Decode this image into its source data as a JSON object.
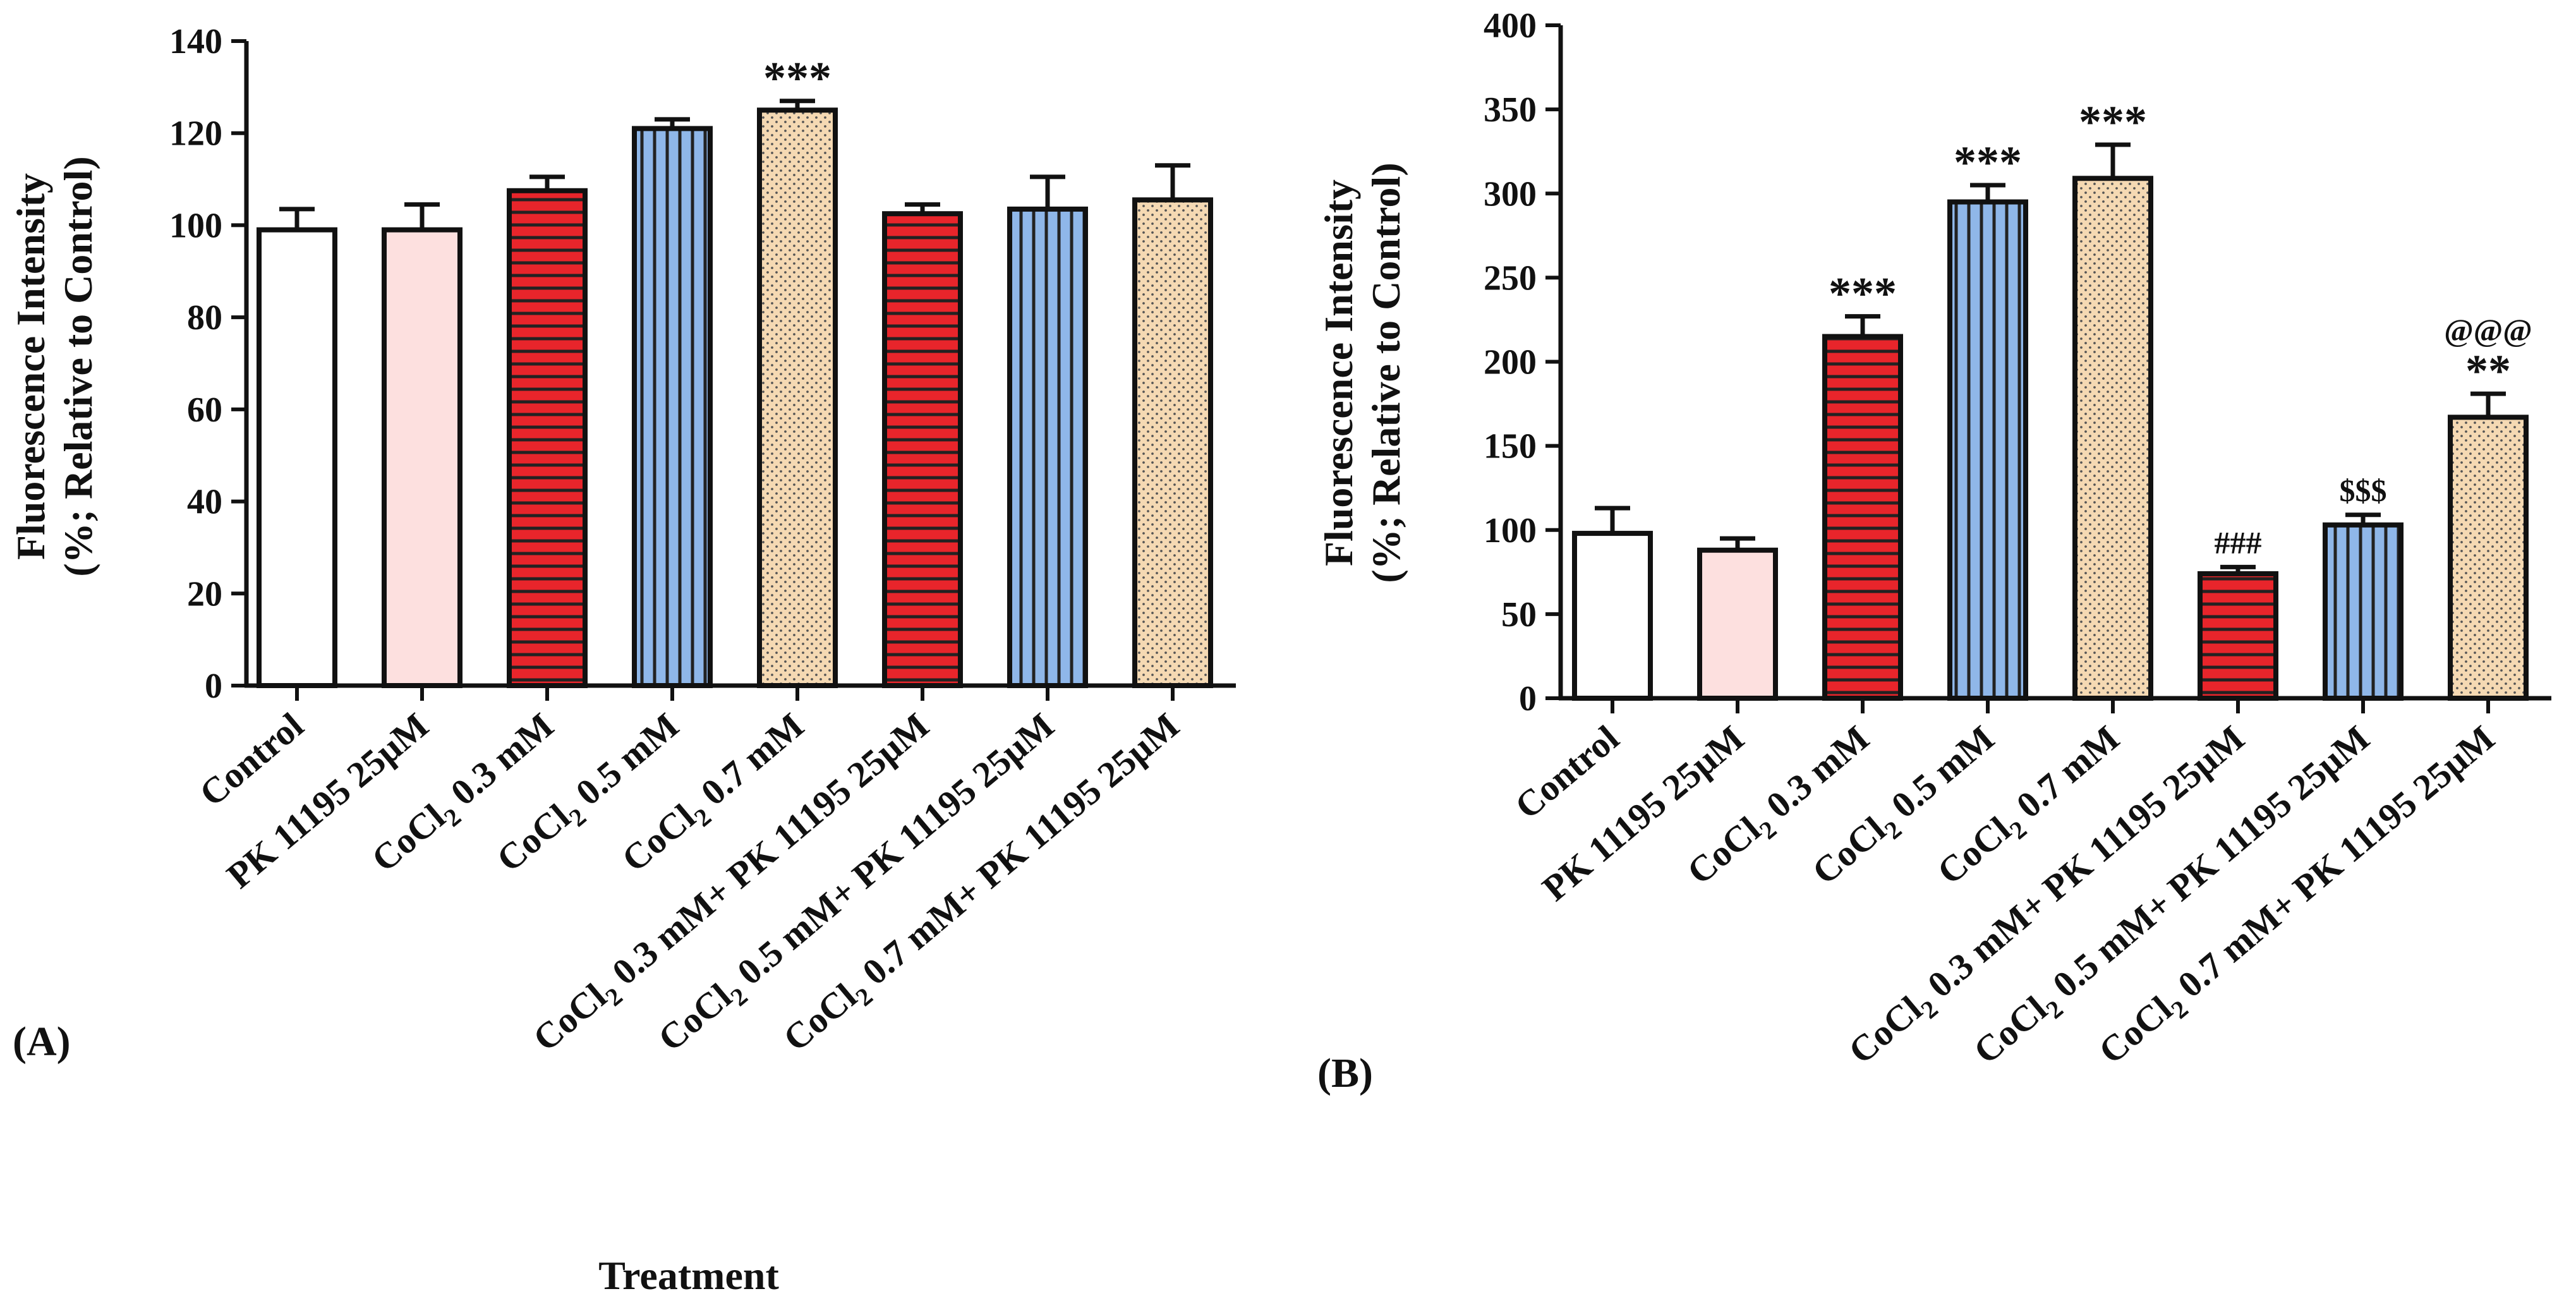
{
  "colors": {
    "control": "#ffffff",
    "pk": "#fde0df",
    "red": "#e8252b",
    "blue": "#8fb7e9",
    "tan": "#f5d9b3",
    "stroke": "#111111"
  },
  "chart_data": [
    {
      "type": "bar",
      "panel": "(A)",
      "ylabel_line1": "Fluorescence Intensity",
      "ylabel_line2": "(%; Relative to Control)",
      "xlabel": "Treatment",
      "ylim": [
        0,
        140
      ],
      "ytick_step": 20,
      "yticks": [
        "0",
        "20",
        "40",
        "60",
        "80",
        "100",
        "120",
        "140"
      ],
      "categories": [
        {
          "main": "Control"
        },
        {
          "main": "PK 11195 25µM"
        },
        {
          "main": "CoCl",
          "sub": "2",
          "rest": " 0.3 mM"
        },
        {
          "main": "CoCl",
          "sub": "2",
          "rest": " 0.5 mM"
        },
        {
          "main": "CoCl",
          "sub": "2",
          "rest": " 0.7 mM"
        },
        {
          "main": "CoCl",
          "sub": "2",
          "rest": " 0.3 mM+ PK 11195 25µM"
        },
        {
          "main": "CoCl",
          "sub": "2",
          "rest": " 0.5 mM+ PK 11195 25µM"
        },
        {
          "main": "CoCl",
          "sub": "2",
          "rest": " 0.7 mM+ PK 11195 25µM"
        }
      ],
      "values": [
        99,
        99,
        107.5,
        121,
        125,
        102.5,
        103.5,
        105.5
      ],
      "errors": [
        4.5,
        5.5,
        3,
        2,
        2,
        2,
        7,
        7.5
      ],
      "patterns": [
        "control",
        "pk",
        "red",
        "blue",
        "tan",
        "red",
        "blue",
        "tan"
      ],
      "annotations": [
        "",
        "",
        "",
        "",
        "***",
        "",
        "",
        ""
      ]
    },
    {
      "type": "bar",
      "panel": "(B)",
      "ylabel_line1": "Fluorescence Intensity",
      "ylabel_line2": "(%; Relative to Control)",
      "ylim": [
        0,
        400
      ],
      "ytick_step": 50,
      "yticks": [
        "0",
        "50",
        "100",
        "150",
        "200",
        "250",
        "300",
        "350",
        "400"
      ],
      "categories": [
        {
          "main": "Control"
        },
        {
          "main": "PK 11195 25µM"
        },
        {
          "main": "CoCl",
          "sub": "2",
          "rest": " 0.3 mM"
        },
        {
          "main": "CoCl",
          "sub": "2",
          "rest": " 0.5 mM"
        },
        {
          "main": "CoCl",
          "sub": "2",
          "rest": " 0.7 mM"
        },
        {
          "main": "CoCl",
          "sub": "2",
          "rest": " 0.3 mM+ PK 11195 25µM"
        },
        {
          "main": "CoCl",
          "sub": "2",
          "rest": " 0.5 mM+ PK 11195 25µM"
        },
        {
          "main": "CoCl",
          "sub": "2",
          "rest": " 0.7 mM+ PK 11195 25µM"
        }
      ],
      "values": [
        98,
        88,
        215,
        295,
        309,
        74,
        103,
        167
      ],
      "errors": [
        15,
        7,
        12,
        10,
        20,
        4,
        6,
        14
      ],
      "patterns": [
        "control",
        "pk",
        "red",
        "blue",
        "tan",
        "red",
        "blue",
        "tan"
      ],
      "annotations": [
        "",
        "",
        "***",
        "***",
        "***",
        "###",
        "$$$",
        "**"
      ],
      "annotations2": [
        "",
        "",
        "",
        "",
        "",
        "",
        "",
        "@@@"
      ]
    }
  ]
}
